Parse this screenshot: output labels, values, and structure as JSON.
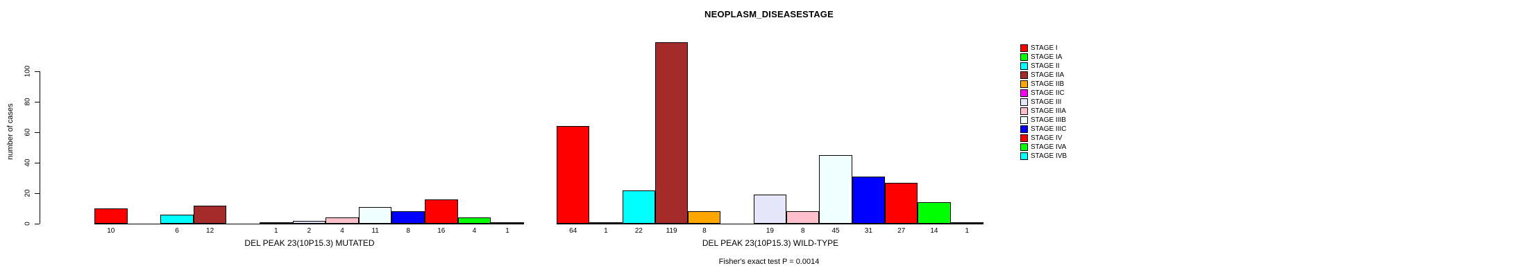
{
  "chart_data": {
    "type": "bar",
    "title": "NEOPLASM_DISEASESTAGE",
    "ylabel": "number of cases",
    "xlabel": "",
    "ylim": [
      0,
      100
    ],
    "yticks": [
      0,
      20,
      40,
      60,
      80,
      100
    ],
    "grid": false,
    "legend_position": "right",
    "categories": [
      "STAGE I",
      "STAGE IA",
      "STAGE II",
      "STAGE IIA",
      "STAGE IIB",
      "STAGE IIC",
      "STAGE III",
      "STAGE IIIA",
      "STAGE IIIB",
      "STAGE IIIC",
      "STAGE IV",
      "STAGE IVA",
      "STAGE IVB"
    ],
    "colors": [
      "#FF0000",
      "#00FF00",
      "#00FFFF",
      "#A52A2A",
      "#FFA500",
      "#FF00FF",
      "#E6E6FA",
      "#FFC0CB",
      "#F0FFFF",
      "#0000FF",
      "#FF0000",
      "#00FF00",
      "#00FFFF"
    ],
    "series": [
      {
        "name": "DEL PEAK 23(10P15.3) MUTATED",
        "values": [
          10,
          null,
          6,
          12,
          null,
          1,
          2,
          4,
          11,
          8,
          16,
          4,
          1
        ]
      },
      {
        "name": "DEL PEAK 23(10P15.3) WILD-TYPE",
        "values": [
          64,
          1,
          22,
          119,
          8,
          null,
          19,
          8,
          45,
          31,
          27,
          14,
          1
        ]
      }
    ],
    "annotation": "Fisher's exact test P = 0.0014"
  }
}
